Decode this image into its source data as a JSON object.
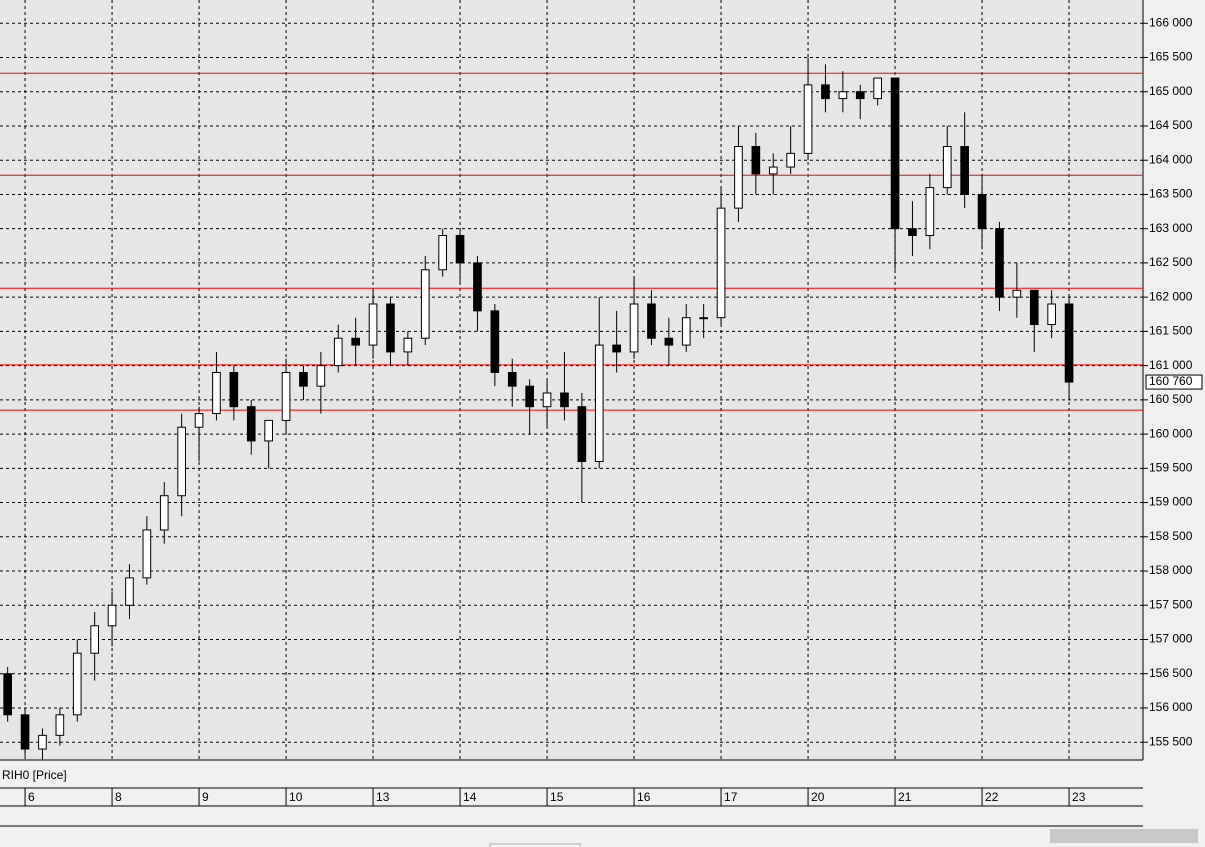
{
  "chart_data": {
    "type": "candlestick",
    "series_label": "RIH0 [Price]",
    "x": [
      -1,
      0,
      1,
      2,
      3,
      4,
      5,
      6,
      7,
      8,
      9,
      10,
      11,
      12,
      13,
      14,
      15,
      16,
      17,
      18,
      19,
      20,
      21,
      22,
      23,
      24,
      25,
      26,
      27,
      28,
      29,
      30,
      31,
      32,
      33,
      34,
      35,
      36,
      37,
      38,
      39,
      40,
      41,
      42,
      43,
      44,
      45,
      46,
      47,
      48,
      49,
      50,
      51,
      52,
      53,
      54,
      55,
      56,
      57,
      58,
      59,
      60
    ],
    "open": [
      156500,
      155900,
      155400,
      155600,
      155900,
      156800,
      157200,
      157500,
      157900,
      158600,
      159100,
      160100,
      160300,
      160900,
      160400,
      159900,
      160200,
      160900,
      160700,
      161000,
      161400,
      161300,
      161900,
      161200,
      161400,
      162400,
      162900,
      162500,
      161800,
      160900,
      160700,
      160400,
      160600,
      160400,
      159600,
      161300,
      161200,
      161900,
      161400,
      161300,
      161700,
      161700,
      163300,
      164200,
      163800,
      163900,
      164100,
      165100,
      164900,
      165000,
      164900,
      165200,
      163000,
      162900,
      163600,
      164200,
      163500,
      163000,
      162000,
      162100,
      161600,
      161900
    ],
    "high": [
      156600,
      156000,
      155700,
      156000,
      157000,
      157400,
      157700,
      158100,
      158800,
      159300,
      160300,
      160400,
      161200,
      161000,
      160500,
      160200,
      161100,
      161000,
      161200,
      161600,
      161700,
      162100,
      162000,
      161500,
      162600,
      163000,
      163000,
      162600,
      161900,
      161100,
      160800,
      160800,
      161200,
      160600,
      162000,
      161800,
      162300,
      162100,
      161700,
      161900,
      161900,
      163600,
      164500,
      164400,
      164100,
      164500,
      165500,
      165400,
      165300,
      165100,
      165200,
      165200,
      163400,
      163800,
      164500,
      164700,
      163800,
      163100,
      162500,
      162100,
      162100,
      162000
    ],
    "low": [
      155800,
      155300,
      155250,
      155450,
      155800,
      156400,
      156900,
      157300,
      157800,
      158400,
      158800,
      159600,
      160200,
      160200,
      159700,
      159500,
      160000,
      160500,
      160300,
      160900,
      161000,
      161100,
      161000,
      161000,
      161300,
      162300,
      162200,
      161500,
      160700,
      160400,
      160000,
      160100,
      160200,
      159000,
      159500,
      160900,
      161100,
      161300,
      161000,
      161200,
      161400,
      161600,
      163100,
      163500,
      163500,
      163800,
      164000,
      164700,
      164700,
      164600,
      164800,
      162400,
      162600,
      162700,
      163500,
      163300,
      162700,
      161800,
      161700,
      161200,
      161400,
      160500
    ],
    "close": [
      155900,
      155400,
      155600,
      155900,
      156800,
      157200,
      157500,
      157900,
      158600,
      159100,
      160100,
      160300,
      160900,
      160400,
      159900,
      160200,
      160900,
      160700,
      161000,
      161400,
      161300,
      161900,
      161200,
      161400,
      162400,
      162900,
      162500,
      161800,
      160900,
      160700,
      160400,
      160600,
      160400,
      159600,
      161300,
      161200,
      161900,
      161400,
      161300,
      161700,
      161700,
      163300,
      164200,
      163800,
      163900,
      164100,
      165100,
      164900,
      165000,
      164900,
      165200,
      163000,
      162900,
      163600,
      164200,
      163500,
      163000,
      162000,
      162100,
      161600,
      161900,
      160760
    ],
    "last_price": {
      "value": 160760,
      "label": "160 760"
    },
    "levels": [
      165270,
      163780,
      162130,
      161010,
      160350
    ],
    "level_color": "#ff0000",
    "up_color": "#ffffff",
    "down_color": "#000000",
    "xlim": [
      -1.44,
      64.25
    ],
    "xticks": [
      {
        "value": 0,
        "label": "6"
      },
      {
        "value": 5,
        "label": "8"
      },
      {
        "value": 10,
        "label": "9"
      },
      {
        "value": 15,
        "label": "10"
      },
      {
        "value": 20,
        "label": "13"
      },
      {
        "value": 25,
        "label": "14"
      },
      {
        "value": 30,
        "label": "15"
      },
      {
        "value": 35,
        "label": "16"
      },
      {
        "value": 40,
        "label": "17"
      },
      {
        "value": 45,
        "label": "20"
      },
      {
        "value": 50,
        "label": "21"
      },
      {
        "value": 55,
        "label": "22"
      },
      {
        "value": 60,
        "label": "23"
      }
    ],
    "ylim": [
      155240,
      166340
    ],
    "yticks": [
      {
        "value": 155500,
        "label": "155 500"
      },
      {
        "value": 156000,
        "label": "156 000"
      },
      {
        "value": 156500,
        "label": "156 500"
      },
      {
        "value": 157000,
        "label": "157 000"
      },
      {
        "value": 157500,
        "label": "157 500"
      },
      {
        "value": 158000,
        "label": "158 000"
      },
      {
        "value": 158500,
        "label": "158 500"
      },
      {
        "value": 159000,
        "label": "159 000"
      },
      {
        "value": 159500,
        "label": "159 500"
      },
      {
        "value": 160000,
        "label": "160 000"
      },
      {
        "value": 160500,
        "label": "160 500"
      },
      {
        "value": 161000,
        "label": "161 000"
      },
      {
        "value": 161500,
        "label": "161 500"
      },
      {
        "value": 162000,
        "label": "162 000"
      },
      {
        "value": 162500,
        "label": "162 500"
      },
      {
        "value": 163000,
        "label": "163 000"
      },
      {
        "value": 163500,
        "label": "163 500"
      },
      {
        "value": 164000,
        "label": "164 000"
      },
      {
        "value": 164500,
        "label": "164 500"
      },
      {
        "value": 165000,
        "label": "165 000"
      },
      {
        "value": 165500,
        "label": "165 500"
      },
      {
        "value": 166000,
        "label": "166 000"
      }
    ],
    "grid": true
  }
}
